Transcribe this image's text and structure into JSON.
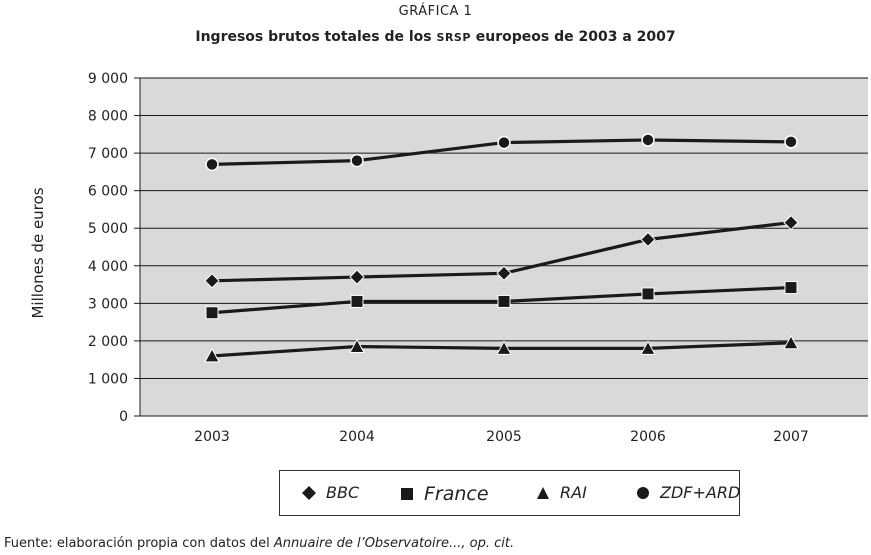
{
  "figure_label": "GRÁFICA 1",
  "title_before": "Ingresos brutos totales de los ",
  "title_smallcaps": "SRSP",
  "title_after": " europeos de 2003 a 2007",
  "source_prefix": "Fuente: elaboración propia con datos del ",
  "source_italic": "Annuaire de l’Observatoire..., op. cit.",
  "colors": {
    "plot_bg": "#d9d9d9",
    "line": "#1a1a1a",
    "grid": "#1a1a1a"
  },
  "chart_data": {
    "type": "line",
    "title": "Ingresos brutos totales de los SRSP europeos de 2003 a 2007",
    "xlabel": "",
    "ylabel": "Millones de euros",
    "x": [
      "2003",
      "2004",
      "2005",
      "2006",
      "2007"
    ],
    "ylim": [
      0,
      9000
    ],
    "yticks": [
      0,
      1000,
      2000,
      3000,
      4000,
      5000,
      6000,
      7000,
      8000,
      9000
    ],
    "ytick_labels": [
      "0",
      "1 000",
      "2 000",
      "3 000",
      "4 000",
      "5 000",
      "6 000",
      "7 000",
      "8 000",
      "9 000"
    ],
    "grid": true,
    "legend_position": "bottom",
    "series": [
      {
        "name": "BBC",
        "marker": "diamond",
        "values": [
          3600,
          3700,
          3800,
          4700,
          5150
        ]
      },
      {
        "name": "France",
        "marker": "square",
        "values": [
          2750,
          3050,
          3050,
          3250,
          3420
        ]
      },
      {
        "name": "RAI",
        "marker": "triangle",
        "values": [
          1600,
          1850,
          1800,
          1800,
          1950
        ]
      },
      {
        "name": "ZDF+ARD",
        "marker": "circle",
        "values": [
          6700,
          6800,
          7280,
          7350,
          7300
        ]
      }
    ]
  }
}
